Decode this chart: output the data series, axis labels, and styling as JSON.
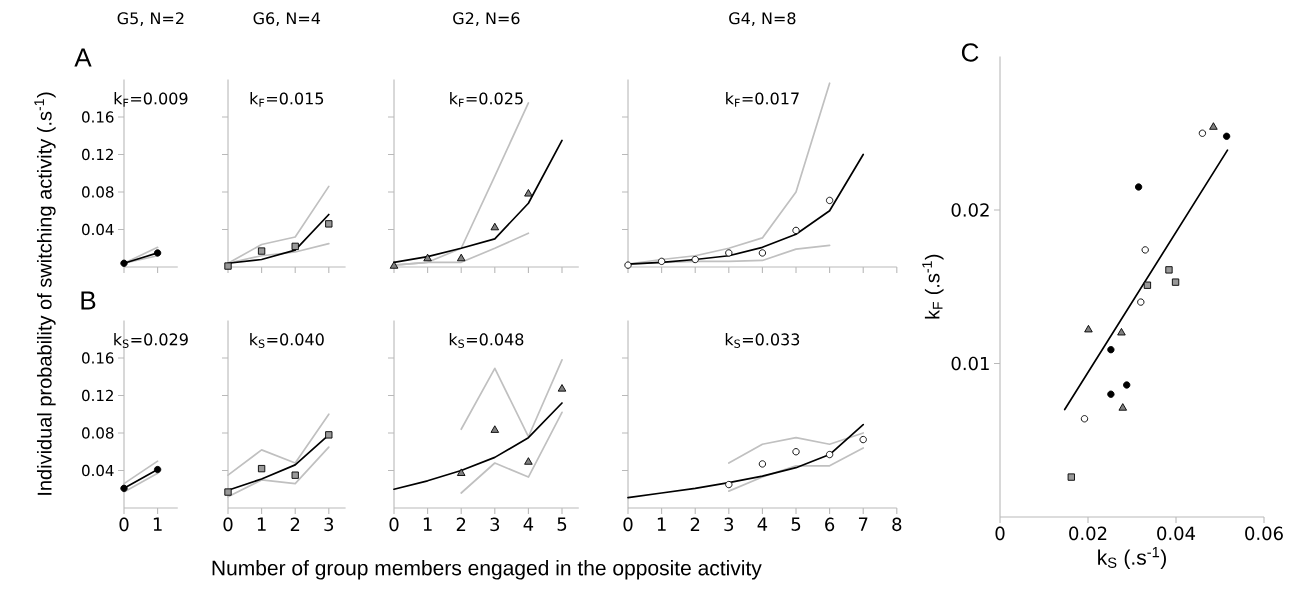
{
  "chart_data": [
    {
      "type": "line",
      "title": "G5, N=2",
      "ylabel": "Individual probability of switching activity (.s$^{-1}$)",
      "annotations": [
        "A",
        "k$_{F}$=0.009"
      ],
      "x": [
        0,
        1
      ],
      "xlim": [
        0,
        1.6
      ],
      "xticks": [
        0,
        1
      ],
      "ylim": [
        0,
        0.2
      ],
      "yticks": [
        0.04,
        0.08,
        0.12,
        0.16
      ],
      "tick_labels": "y",
      "series": [
        {
          "color": "#c0c0c0",
          "values": [
            0.004,
            0.021
          ]
        },
        {
          "color": "#c0c0c0",
          "values": [
            0.004,
            0.012
          ]
        },
        {
          "color": "#000000",
          "values": [
            0.004,
            0.015
          ]
        },
        {
          "type": "scatter",
          "marker": "circle",
          "color": "#000000",
          "values": [
            0.004,
            0.015
          ]
        }
      ]
    },
    {
      "type": "line",
      "title": "G6, N=4",
      "annotations": [
        "k$_{F}$=0.015"
      ],
      "x": [
        0,
        1,
        2,
        3
      ],
      "xlim": [
        0,
        3.5
      ],
      "xticks": [
        0,
        1,
        2,
        3
      ],
      "ylim": [
        0,
        0.2
      ],
      "yticks": [
        0.04,
        0.08,
        0.12,
        0.16
      ],
      "tick_labels": false,
      "series": [
        {
          "color": "#c0c0c0",
          "values": [
            0.004,
            0.024,
            0.032,
            0.086
          ]
        },
        {
          "color": "#c0c0c0",
          "values": [
            0.004,
            0.012,
            0.016,
            0.025
          ]
        },
        {
          "color": "#000000",
          "values": [
            0.004,
            0.008,
            0.018,
            0.056
          ]
        },
        {
          "type": "scatter",
          "marker": "square",
          "color": "#999999",
          "values": [
            0.001,
            0.017,
            0.022,
            0.046
          ]
        }
      ]
    },
    {
      "type": "line",
      "title": "G2, N=6",
      "annotations": [
        "k$_{F}$=0.025"
      ],
      "x": [
        0,
        1,
        2,
        3,
        4,
        5
      ],
      "xlim": [
        0,
        5.5
      ],
      "xticks": [
        0,
        1,
        2,
        3,
        4,
        5
      ],
      "ylim": [
        0,
        0.2
      ],
      "yticks": [
        0.04,
        0.08,
        0.12,
        0.16
      ],
      "tick_labels": false,
      "series": [
        {
          "color": "#c0c0c0",
          "values": [
            0.002,
            0.005,
            0.02,
            0.097,
            0.175,
            null
          ]
        },
        {
          "color": "#c0c0c0",
          "values": [
            0.002,
            0.005,
            0.005,
            0.02,
            0.036,
            null
          ]
        },
        {
          "color": "#000000",
          "values": [
            0.005,
            0.011,
            0.02,
            0.03,
            0.068,
            0.135
          ]
        },
        {
          "type": "scatter",
          "marker": "triangle",
          "color": "#808080",
          "values": [
            0.001,
            0.009,
            0.009,
            0.042,
            0.078,
            null
          ]
        }
      ]
    },
    {
      "type": "line",
      "title": "G4, N=8",
      "annotations": [
        "k$_{F}$=0.017"
      ],
      "x": [
        0,
        1,
        2,
        3,
        4,
        5,
        6,
        7
      ],
      "xlim": [
        0,
        8
      ],
      "xticks": [
        0,
        1,
        2,
        3,
        4,
        5,
        6,
        7,
        8
      ],
      "ylim": [
        0,
        0.2
      ],
      "yticks": [
        0.04,
        0.08,
        0.12,
        0.16
      ],
      "tick_labels": false,
      "series": [
        {
          "color": "#c0c0c0",
          "values": [
            0.003,
            0.008,
            0.012,
            0.02,
            0.031,
            0.08,
            0.196,
            null
          ]
        },
        {
          "color": "#c0c0c0",
          "values": [
            0.003,
            0.005,
            0.006,
            0.006,
            0.007,
            0.019,
            0.023,
            null
          ]
        },
        {
          "color": "#000000",
          "values": [
            0.003,
            0.005,
            0.008,
            0.012,
            0.021,
            0.035,
            0.06,
            0.12
          ]
        },
        {
          "type": "scatter",
          "marker": "circle",
          "color": "#ffffff",
          "values": [
            0.002,
            0.006,
            0.008,
            0.015,
            0.015,
            0.039,
            0.071,
            null
          ]
        }
      ]
    },
    {
      "type": "line",
      "annotations": [
        "B",
        "k$_{S}$=0.029"
      ],
      "x": [
        0,
        1
      ],
      "xlim": [
        0,
        1.6
      ],
      "xticks": [
        0,
        1
      ],
      "ylim": [
        0,
        0.2
      ],
      "yticks": [
        0.04,
        0.08,
        0.12,
        0.16
      ],
      "series": [
        {
          "color": "#c0c0c0",
          "values": [
            0.026,
            0.05
          ]
        },
        {
          "color": "#c0c0c0",
          "values": [
            0.017,
            0.037
          ]
        },
        {
          "color": "#000000",
          "values": [
            0.021,
            0.041
          ]
        },
        {
          "type": "scatter",
          "marker": "circle",
          "color": "#000000",
          "values": [
            0.021,
            0.041
          ]
        }
      ]
    },
    {
      "type": "line",
      "annotations": [
        "k$_{S}$=0.040"
      ],
      "x": [
        0,
        1,
        2,
        3
      ],
      "xlim": [
        0,
        3.5
      ],
      "xticks": [
        0,
        1,
        2,
        3
      ],
      "ylim": [
        0,
        0.2
      ],
      "yticks": [
        0.04,
        0.08,
        0.12,
        0.16
      ],
      "tick_labels": "x",
      "series": [
        {
          "color": "#c0c0c0",
          "values": [
            0.035,
            0.062,
            0.048,
            0.1
          ]
        },
        {
          "color": "#c0c0c0",
          "values": [
            0.012,
            0.03,
            0.026,
            0.065
          ]
        },
        {
          "color": "#000000",
          "values": [
            0.019,
            0.031,
            0.046,
            0.078
          ]
        },
        {
          "type": "scatter",
          "marker": "square",
          "color": "#999999",
          "values": [
            0.017,
            0.042,
            0.035,
            0.078
          ]
        }
      ]
    },
    {
      "type": "line",
      "annotations": [
        "k$_{S}$=0.048"
      ],
      "xlabel": "Number of group members engaged in the opposite activity",
      "x": [
        0,
        1,
        2,
        3,
        4,
        5
      ],
      "xlim": [
        0,
        5.5
      ],
      "xticks": [
        0,
        1,
        2,
        3,
        4,
        5
      ],
      "ylim": [
        0,
        0.2
      ],
      "yticks": [
        0.04,
        0.08,
        0.12,
        0.16
      ],
      "tick_labels": "x",
      "series": [
        {
          "color": "#c0c0c0",
          "values": [
            null,
            null,
            0.084,
            0.149,
            0.076,
            0.158
          ]
        },
        {
          "color": "#c0c0c0",
          "values": [
            null,
            null,
            0.016,
            0.048,
            0.033,
            0.102
          ]
        },
        {
          "color": "#000000",
          "values": [
            0.02,
            0.029,
            0.04,
            0.054,
            0.075,
            0.112
          ]
        },
        {
          "type": "scatter",
          "marker": "triangle",
          "color": "#808080",
          "values": [
            null,
            null,
            0.037,
            0.083,
            0.049,
            0.127
          ]
        }
      ]
    },
    {
      "type": "line",
      "annotations": [
        "k$_{S}$=0.033"
      ],
      "x": [
        0,
        1,
        2,
        3,
        4,
        5,
        6,
        7
      ],
      "xlim": [
        0,
        8
      ],
      "xticks": [
        0,
        1,
        2,
        3,
        4,
        5,
        6,
        7,
        8
      ],
      "ylim": [
        0,
        0.2
      ],
      "yticks": [
        0.04,
        0.08,
        0.12,
        0.16
      ],
      "tick_labels": "x",
      "series": [
        {
          "color": "#c0c0c0",
          "values": [
            null,
            null,
            null,
            0.048,
            0.068,
            0.075,
            0.068,
            0.08
          ]
        },
        {
          "color": "#c0c0c0",
          "values": [
            null,
            null,
            null,
            0.018,
            0.033,
            0.045,
            0.045,
            0.064
          ]
        },
        {
          "color": "#000000",
          "values": [
            0.011,
            0.016,
            0.021,
            0.027,
            0.034,
            0.043,
            0.057,
            0.089
          ]
        },
        {
          "type": "scatter",
          "marker": "circle",
          "color": "#ffffff",
          "values": [
            null,
            null,
            null,
            0.025,
            0.047,
            0.06,
            0.057,
            0.073
          ]
        }
      ]
    },
    {
      "type": "scatter",
      "annotations": [
        "C"
      ],
      "xlabel": "k$_{S}$ (.s$^{-1}$)",
      "ylabel": "k$_{F}$ (.s$^{-1}$)",
      "xlim": [
        0,
        0.06
      ],
      "xticks": [
        0,
        0.02,
        0.04,
        0.06
      ],
      "ylim": [
        0,
        0.03
      ],
      "yticks": [
        0.01,
        0.02
      ],
      "series": [
        {
          "type": "line",
          "color": "#000000",
          "x": [
            0.0147,
            0.0517
          ],
          "values": [
            0.007,
            0.0239
          ]
        },
        {
          "marker": "circle",
          "color": "#ffffff",
          "x": [
            0.046,
            0.033,
            0.032,
            0.0192
          ],
          "values": [
            0.025,
            0.0174,
            0.014,
            0.0064
          ]
        },
        {
          "marker": "triangle",
          "color": "#808080",
          "x": [
            0.0485,
            0.0201,
            0.0276,
            0.0279
          ],
          "values": [
            0.0254,
            0.0122,
            0.012,
            0.0071
          ]
        },
        {
          "marker": "square",
          "color": "#999999",
          "x": [
            0.0384,
            0.0335,
            0.0399,
            0.0162
          ],
          "values": [
            0.0161,
            0.0151,
            0.0153,
            0.0026
          ]
        },
        {
          "marker": "circle",
          "color": "#000000",
          "x": [
            0.0515,
            0.0315,
            0.0252,
            0.0288,
            0.0252
          ],
          "values": [
            0.0248,
            0.0215,
            0.0109,
            0.0086,
            0.008
          ]
        }
      ]
    }
  ]
}
